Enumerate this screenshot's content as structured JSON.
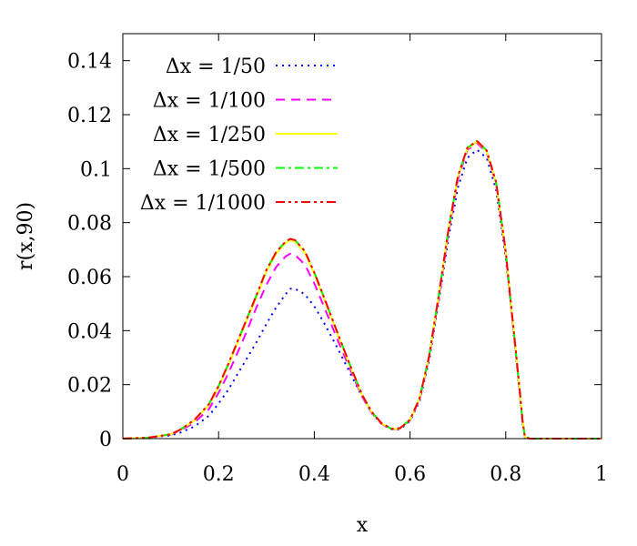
{
  "chart_data": {
    "type": "line",
    "xlabel": "x",
    "ylabel": "r(x,90)",
    "xlim": [
      0,
      1
    ],
    "ylim": [
      0,
      0.15
    ],
    "grid": false,
    "legend_position": "top-left",
    "x_ticks": [
      "0",
      "0.2",
      "0.4",
      "0.6",
      "0.8",
      "1"
    ],
    "y_ticks": [
      "0",
      "0.02",
      "0.04",
      "0.06",
      "0.08",
      "0.1",
      "0.12",
      "0.14"
    ],
    "series": [
      {
        "name": "Δx = 1/50",
        "color": "#0000ff",
        "style": "dotted",
        "x": [
          0,
          0.05,
          0.1,
          0.12,
          0.15,
          0.18,
          0.2,
          0.22,
          0.25,
          0.28,
          0.3,
          0.32,
          0.34,
          0.35,
          0.36,
          0.38,
          0.4,
          0.42,
          0.45,
          0.48,
          0.5,
          0.52,
          0.54,
          0.56,
          0.57,
          0.58,
          0.6,
          0.62,
          0.64,
          0.66,
          0.68,
          0.7,
          0.72,
          0.74,
          0.76,
          0.78,
          0.8,
          0.81,
          0.82,
          0.83,
          0.835,
          0.84,
          0.85,
          0.9,
          1
        ],
        "y": [
          0,
          0.0003,
          0.0012,
          0.0022,
          0.0045,
          0.0085,
          0.013,
          0.018,
          0.027,
          0.036,
          0.0425,
          0.0485,
          0.0535,
          0.0555,
          0.0555,
          0.0535,
          0.049,
          0.043,
          0.033,
          0.0225,
          0.0155,
          0.0095,
          0.0055,
          0.0035,
          0.0032,
          0.0036,
          0.0065,
          0.014,
          0.029,
          0.051,
          0.074,
          0.093,
          0.104,
          0.107,
          0.104,
          0.092,
          0.067,
          0.05,
          0.033,
          0.015,
          0.006,
          0.0005,
          0,
          0,
          0
        ]
      },
      {
        "name": "Δx = 1/100",
        "color": "#ff00ff",
        "style": "dashed",
        "x": [
          0,
          0.05,
          0.1,
          0.12,
          0.15,
          0.18,
          0.2,
          0.22,
          0.25,
          0.28,
          0.3,
          0.32,
          0.34,
          0.35,
          0.36,
          0.38,
          0.4,
          0.42,
          0.45,
          0.48,
          0.5,
          0.52,
          0.54,
          0.56,
          0.57,
          0.58,
          0.6,
          0.62,
          0.64,
          0.66,
          0.68,
          0.7,
          0.72,
          0.74,
          0.76,
          0.78,
          0.8,
          0.81,
          0.82,
          0.83,
          0.835,
          0.84,
          0.85,
          0.9,
          1
        ],
        "y": [
          0,
          0.0003,
          0.0015,
          0.003,
          0.006,
          0.011,
          0.017,
          0.024,
          0.036,
          0.049,
          0.057,
          0.0635,
          0.0675,
          0.0685,
          0.068,
          0.0645,
          0.0575,
          0.049,
          0.036,
          0.0235,
          0.0155,
          0.0095,
          0.0055,
          0.0036,
          0.0034,
          0.0038,
          0.0068,
          0.0145,
          0.03,
          0.052,
          0.076,
          0.096,
          0.107,
          0.1095,
          0.106,
          0.094,
          0.0685,
          0.0505,
          0.0335,
          0.0155,
          0.0065,
          0.0006,
          0,
          0,
          0
        ]
      },
      {
        "name": "Δx = 1/250",
        "color": "#ffff00",
        "style": "solid",
        "x": [
          0,
          0.05,
          0.1,
          0.12,
          0.15,
          0.18,
          0.2,
          0.22,
          0.25,
          0.28,
          0.3,
          0.32,
          0.34,
          0.35,
          0.36,
          0.38,
          0.4,
          0.42,
          0.45,
          0.48,
          0.5,
          0.52,
          0.54,
          0.56,
          0.57,
          0.58,
          0.6,
          0.62,
          0.64,
          0.66,
          0.68,
          0.7,
          0.72,
          0.74,
          0.76,
          0.78,
          0.8,
          0.81,
          0.82,
          0.83,
          0.835,
          0.84,
          0.85,
          0.9,
          1
        ],
        "y": [
          0,
          0.0003,
          0.0016,
          0.0032,
          0.0068,
          0.0125,
          0.019,
          0.027,
          0.04,
          0.053,
          0.062,
          0.0685,
          0.0725,
          0.0735,
          0.073,
          0.069,
          0.061,
          0.052,
          0.038,
          0.0245,
          0.016,
          0.0098,
          0.0057,
          0.0037,
          0.0035,
          0.0039,
          0.007,
          0.015,
          0.0305,
          0.053,
          0.077,
          0.097,
          0.1075,
          0.11,
          0.1065,
          0.0945,
          0.069,
          0.051,
          0.034,
          0.016,
          0.0067,
          0.0006,
          0,
          0,
          0
        ]
      },
      {
        "name": "Δx = 1/500",
        "color": "#00ff00",
        "style": "dash-dot",
        "x": [
          0,
          0.05,
          0.1,
          0.12,
          0.15,
          0.18,
          0.2,
          0.22,
          0.25,
          0.28,
          0.3,
          0.32,
          0.34,
          0.35,
          0.36,
          0.38,
          0.4,
          0.42,
          0.45,
          0.48,
          0.5,
          0.52,
          0.54,
          0.56,
          0.57,
          0.58,
          0.6,
          0.62,
          0.64,
          0.66,
          0.68,
          0.7,
          0.72,
          0.74,
          0.76,
          0.78,
          0.8,
          0.81,
          0.82,
          0.83,
          0.835,
          0.84,
          0.85,
          0.9,
          1
        ],
        "y": [
          0,
          0.0003,
          0.0016,
          0.0033,
          0.007,
          0.0128,
          0.0195,
          0.0275,
          0.0405,
          0.0535,
          0.0625,
          0.069,
          0.073,
          0.074,
          0.0735,
          0.0695,
          0.0615,
          0.0525,
          0.0385,
          0.0248,
          0.0162,
          0.0099,
          0.0058,
          0.0037,
          0.0035,
          0.004,
          0.007,
          0.015,
          0.0306,
          0.0532,
          0.0772,
          0.0972,
          0.1078,
          0.1102,
          0.1068,
          0.0948,
          0.0692,
          0.0512,
          0.0342,
          0.0162,
          0.0068,
          0.0006,
          0,
          0,
          0
        ]
      },
      {
        "name": "Δx = 1/1000",
        "color": "#ff0000",
        "style": "dash-dot-dot",
        "x": [
          0,
          0.05,
          0.1,
          0.12,
          0.15,
          0.18,
          0.2,
          0.22,
          0.25,
          0.28,
          0.3,
          0.32,
          0.34,
          0.35,
          0.36,
          0.38,
          0.4,
          0.42,
          0.45,
          0.48,
          0.5,
          0.52,
          0.54,
          0.56,
          0.57,
          0.58,
          0.6,
          0.62,
          0.64,
          0.66,
          0.68,
          0.7,
          0.72,
          0.74,
          0.76,
          0.78,
          0.8,
          0.81,
          0.82,
          0.83,
          0.835,
          0.84,
          0.85,
          0.9,
          1
        ],
        "y": [
          0,
          0.0003,
          0.0016,
          0.0033,
          0.007,
          0.0128,
          0.0195,
          0.0275,
          0.0405,
          0.0535,
          0.0625,
          0.069,
          0.073,
          0.074,
          0.0735,
          0.0695,
          0.0615,
          0.0525,
          0.0385,
          0.0248,
          0.0162,
          0.0099,
          0.0058,
          0.0037,
          0.0035,
          0.004,
          0.007,
          0.015,
          0.0306,
          0.0532,
          0.0772,
          0.0972,
          0.1078,
          0.1102,
          0.1068,
          0.0948,
          0.0692,
          0.0512,
          0.0342,
          0.0162,
          0.0068,
          0.0006,
          0,
          0,
          0
        ]
      }
    ]
  }
}
